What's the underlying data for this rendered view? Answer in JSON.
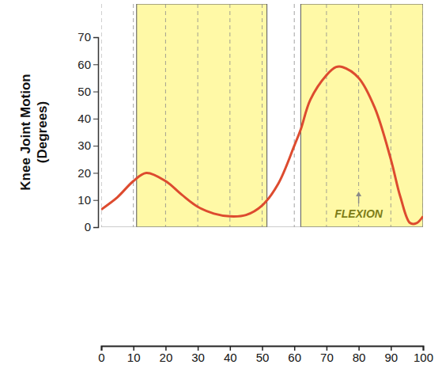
{
  "chart_data": {
    "type": "line",
    "y_label": "Knee Joint Motion (Degrees)",
    "annotations": [
      "FLEXION"
    ],
    "x": [
      0,
      5,
      10,
      14,
      20,
      25,
      30,
      35,
      40,
      45,
      50,
      55,
      60,
      62,
      65,
      70,
      73,
      75,
      80,
      85,
      90,
      93,
      96,
      98,
      100
    ],
    "values": [
      6.5,
      11,
      17,
      20,
      17,
      12,
      7.5,
      5,
      4,
      4.5,
      8,
      16,
      30,
      36,
      47,
      56,
      59,
      59,
      55,
      44,
      25,
      11,
      1.5,
      1.5,
      4
    ],
    "color": "#dd4b2f",
    "bands": [
      [
        11,
        51.5
      ],
      [
        62,
        100
      ]
    ],
    "xlim": [
      0,
      100
    ],
    "xticks": [
      0,
      10,
      20,
      30,
      40,
      50,
      60,
      70,
      80,
      90,
      100
    ],
    "ylim": [
      0,
      70
    ],
    "yticks": [
      0,
      10,
      20,
      30,
      40,
      50,
      60,
      70
    ],
    "grid": true
  }
}
